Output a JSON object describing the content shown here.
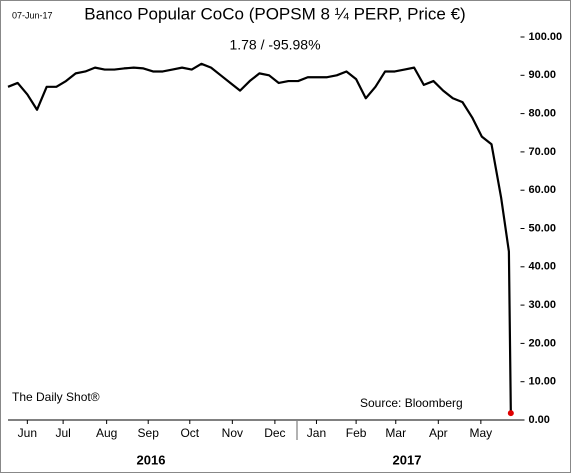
{
  "chart_data": {
    "type": "line",
    "date_stamp": "07-Jun-17",
    "title": "Banco Popular CoCo (POPSM 8 ¼ PERP, Price €)",
    "subtitle": "1.78  /  -95.98%",
    "credit": "The Daily Shot®",
    "source": "Source: Bloomberg",
    "years": [
      "2016",
      "2017"
    ],
    "x": [
      0,
      1,
      2,
      3,
      4,
      5,
      6,
      7,
      8,
      9,
      10,
      11,
      12,
      13,
      14,
      15,
      16,
      17,
      18,
      19,
      20,
      21,
      22,
      23,
      24,
      25,
      26,
      27,
      28,
      29,
      30,
      31,
      32,
      33,
      34,
      35,
      36,
      37,
      38,
      39,
      40,
      41,
      42,
      43,
      44,
      45,
      46,
      47,
      48,
      49,
      50,
      51,
      51.8,
      52
    ],
    "series": [
      {
        "name": "POPSM 8 ¼ PERP",
        "color": "#000000",
        "values": [
          87,
          88,
          85,
          81,
          87,
          87,
          88.5,
          90.5,
          91,
          92,
          91.5,
          91.5,
          91.8,
          92,
          91.8,
          91,
          91,
          91.5,
          92,
          91.5,
          93,
          92,
          90,
          88,
          86,
          88.5,
          90.5,
          90,
          88,
          88.5,
          88.5,
          89.5,
          89.5,
          89.5,
          90,
          91,
          89,
          84,
          87,
          91,
          91,
          91.5,
          92,
          87.5,
          88.5,
          86,
          84,
          83,
          79,
          74,
          72,
          58,
          44,
          1.78
        ]
      }
    ],
    "last_point_color": "#e00000",
    "xlim": [
      0,
      53
    ],
    "xticks": [
      {
        "value": 2,
        "label": "Jun"
      },
      {
        "value": 5.7,
        "label": "Jul"
      },
      {
        "value": 10.2,
        "label": "Aug"
      },
      {
        "value": 14.5,
        "label": "Sep"
      },
      {
        "value": 18.8,
        "label": "Oct"
      },
      {
        "value": 23.2,
        "label": "Nov"
      },
      {
        "value": 27.6,
        "label": "Dec"
      },
      {
        "value": 31.9,
        "label": "Jan"
      },
      {
        "value": 36,
        "label": "Feb"
      },
      {
        "value": 40.1,
        "label": "Mar"
      },
      {
        "value": 44.5,
        "label": "Apr"
      },
      {
        "value": 48.9,
        "label": "May"
      }
    ],
    "ylim": [
      0,
      100
    ],
    "yticks": [
      {
        "value": 0,
        "label": "0.00"
      },
      {
        "value": 10,
        "label": "10.00"
      },
      {
        "value": 20,
        "label": "20.00"
      },
      {
        "value": 30,
        "label": "30.00"
      },
      {
        "value": 40,
        "label": "40.00"
      },
      {
        "value": 50,
        "label": "50.00"
      },
      {
        "value": 60,
        "label": "60.00"
      },
      {
        "value": 70,
        "label": "70.00"
      },
      {
        "value": 80,
        "label": "80.00"
      },
      {
        "value": 90,
        "label": "90.00"
      },
      {
        "value": 100,
        "label": "100.00"
      }
    ]
  }
}
